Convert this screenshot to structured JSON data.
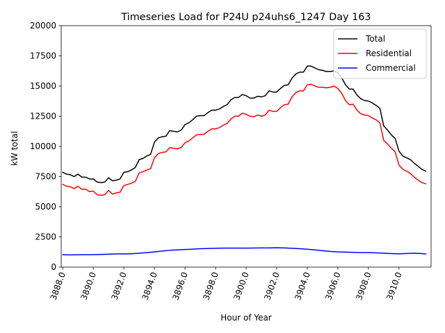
{
  "chart_data": {
    "type": "line",
    "title": "Timeseries Load for P24U p24uhs6_1247  Day 163",
    "xlabel": "Hour of Year",
    "ylabel": "kW total",
    "xlim": [
      3887.9,
      3912.1
    ],
    "ylim": [
      0,
      20000
    ],
    "xticks": [
      3888,
      3890,
      3892,
      3894,
      3896,
      3898,
      3900,
      3902,
      3904,
      3906,
      3908,
      3910
    ],
    "xtick_labels": [
      "3888.0",
      "3890.0",
      "3892.0",
      "3894.0",
      "3896.0",
      "3898.0",
      "3900.0",
      "3902.0",
      "3904.0",
      "3906.0",
      "3908.0",
      "3910.0"
    ],
    "yticks": [
      0,
      2500,
      5000,
      7500,
      10000,
      12500,
      15000,
      17500,
      20000
    ],
    "ytick_labels": [
      "0",
      "2500",
      "5000",
      "7500",
      "10000",
      "12500",
      "15000",
      "17500",
      "20000"
    ],
    "grid": false,
    "legend_position": "top-right",
    "series": [
      {
        "name": "Total",
        "color": "#000000",
        "points": [
          [
            3888.0,
            7850
          ],
          [
            3888.25,
            7700
          ],
          [
            3888.5,
            7650
          ],
          [
            3888.75,
            7500
          ],
          [
            3889.0,
            7700
          ],
          [
            3889.25,
            7450
          ],
          [
            3889.5,
            7450
          ],
          [
            3889.75,
            7300
          ],
          [
            3890.0,
            7300
          ],
          [
            3890.25,
            7050
          ],
          [
            3890.5,
            7000
          ],
          [
            3890.75,
            7050
          ],
          [
            3891.0,
            7400
          ],
          [
            3891.25,
            7150
          ],
          [
            3891.5,
            7200
          ],
          [
            3891.75,
            7300
          ],
          [
            3892.0,
            7850
          ],
          [
            3892.25,
            7900
          ],
          [
            3892.5,
            8050
          ],
          [
            3892.75,
            8250
          ],
          [
            3893.0,
            8900
          ],
          [
            3893.25,
            9000
          ],
          [
            3893.5,
            9200
          ],
          [
            3893.75,
            9350
          ],
          [
            3894.0,
            10350
          ],
          [
            3894.25,
            10700
          ],
          [
            3894.5,
            10800
          ],
          [
            3894.75,
            10850
          ],
          [
            3895.0,
            11300
          ],
          [
            3895.25,
            11250
          ],
          [
            3895.5,
            11200
          ],
          [
            3895.75,
            11350
          ],
          [
            3896.0,
            11800
          ],
          [
            3896.25,
            11950
          ],
          [
            3896.5,
            12200
          ],
          [
            3896.75,
            12500
          ],
          [
            3897.0,
            12550
          ],
          [
            3897.25,
            12550
          ],
          [
            3897.5,
            12800
          ],
          [
            3897.75,
            13000
          ],
          [
            3898.0,
            13000
          ],
          [
            3898.25,
            13100
          ],
          [
            3898.5,
            13300
          ],
          [
            3898.75,
            13450
          ],
          [
            3899.0,
            13850
          ],
          [
            3899.25,
            14050
          ],
          [
            3899.5,
            14050
          ],
          [
            3899.75,
            14300
          ],
          [
            3900.0,
            14200
          ],
          [
            3900.25,
            14000
          ],
          [
            3900.5,
            14000
          ],
          [
            3900.75,
            14150
          ],
          [
            3901.0,
            14100
          ],
          [
            3901.25,
            14200
          ],
          [
            3901.5,
            14600
          ],
          [
            3901.75,
            14500
          ],
          [
            3902.0,
            14500
          ],
          [
            3902.25,
            14800
          ],
          [
            3902.5,
            15050
          ],
          [
            3902.75,
            15100
          ],
          [
            3903.0,
            15650
          ],
          [
            3903.25,
            16000
          ],
          [
            3903.5,
            16150
          ],
          [
            3903.75,
            16150
          ],
          [
            3904.0,
            16650
          ],
          [
            3904.25,
            16650
          ],
          [
            3904.5,
            16500
          ],
          [
            3904.75,
            16350
          ],
          [
            3905.0,
            16300
          ],
          [
            3905.25,
            16200
          ],
          [
            3905.5,
            16200
          ],
          [
            3905.75,
            16250
          ],
          [
            3906.0,
            16100
          ],
          [
            3906.25,
            15700
          ],
          [
            3906.5,
            15100
          ],
          [
            3906.75,
            14750
          ],
          [
            3907.0,
            14750
          ],
          [
            3907.25,
            14250
          ],
          [
            3907.5,
            13950
          ],
          [
            3907.75,
            13800
          ],
          [
            3908.0,
            13750
          ],
          [
            3908.25,
            13600
          ],
          [
            3908.5,
            13400
          ],
          [
            3908.75,
            13150
          ],
          [
            3909.0,
            11700
          ],
          [
            3909.25,
            11350
          ],
          [
            3909.5,
            10950
          ],
          [
            3909.75,
            10650
          ],
          [
            3910.0,
            9600
          ],
          [
            3910.25,
            9200
          ],
          [
            3910.5,
            9050
          ],
          [
            3910.75,
            8900
          ],
          [
            3911.0,
            8600
          ],
          [
            3911.25,
            8350
          ],
          [
            3911.5,
            8100
          ],
          [
            3911.75,
            7950
          ]
        ]
      },
      {
        "name": "Residential",
        "color": "#ff0000",
        "points": [
          [
            3888.0,
            6850
          ],
          [
            3888.25,
            6700
          ],
          [
            3888.5,
            6650
          ],
          [
            3888.75,
            6500
          ],
          [
            3889.0,
            6700
          ],
          [
            3889.25,
            6450
          ],
          [
            3889.5,
            6450
          ],
          [
            3889.75,
            6250
          ],
          [
            3890.0,
            6300
          ],
          [
            3890.25,
            6000
          ],
          [
            3890.5,
            5950
          ],
          [
            3890.75,
            6000
          ],
          [
            3891.0,
            6350
          ],
          [
            3891.25,
            6050
          ],
          [
            3891.5,
            6150
          ],
          [
            3891.75,
            6200
          ],
          [
            3892.0,
            6750
          ],
          [
            3892.25,
            6850
          ],
          [
            3892.5,
            6950
          ],
          [
            3892.75,
            7100
          ],
          [
            3893.0,
            7800
          ],
          [
            3893.25,
            7900
          ],
          [
            3893.5,
            8050
          ],
          [
            3893.75,
            8150
          ],
          [
            3894.0,
            9050
          ],
          [
            3894.25,
            9400
          ],
          [
            3894.5,
            9500
          ],
          [
            3894.75,
            9550
          ],
          [
            3895.0,
            9900
          ],
          [
            3895.25,
            9850
          ],
          [
            3895.5,
            9800
          ],
          [
            3895.75,
            9900
          ],
          [
            3896.0,
            10300
          ],
          [
            3896.25,
            10450
          ],
          [
            3896.5,
            10700
          ],
          [
            3896.75,
            10950
          ],
          [
            3897.0,
            11000
          ],
          [
            3897.25,
            11000
          ],
          [
            3897.5,
            11250
          ],
          [
            3897.75,
            11450
          ],
          [
            3898.0,
            11450
          ],
          [
            3898.25,
            11550
          ],
          [
            3898.5,
            11750
          ],
          [
            3898.75,
            11900
          ],
          [
            3899.0,
            12250
          ],
          [
            3899.25,
            12500
          ],
          [
            3899.5,
            12500
          ],
          [
            3899.75,
            12750
          ],
          [
            3900.0,
            12650
          ],
          [
            3900.25,
            12500
          ],
          [
            3900.5,
            12450
          ],
          [
            3900.75,
            12600
          ],
          [
            3901.0,
            12500
          ],
          [
            3901.25,
            12600
          ],
          [
            3901.5,
            13000
          ],
          [
            3901.75,
            12900
          ],
          [
            3902.0,
            12900
          ],
          [
            3902.25,
            13200
          ],
          [
            3902.5,
            13450
          ],
          [
            3902.75,
            13500
          ],
          [
            3903.0,
            14100
          ],
          [
            3903.25,
            14450
          ],
          [
            3903.5,
            14600
          ],
          [
            3903.75,
            14600
          ],
          [
            3904.0,
            15100
          ],
          [
            3904.25,
            15150
          ],
          [
            3904.5,
            15000
          ],
          [
            3904.75,
            14900
          ],
          [
            3905.0,
            14900
          ],
          [
            3905.25,
            14850
          ],
          [
            3905.5,
            14900
          ],
          [
            3905.75,
            15000
          ],
          [
            3906.0,
            14800
          ],
          [
            3906.25,
            14400
          ],
          [
            3906.5,
            13800
          ],
          [
            3906.75,
            13450
          ],
          [
            3907.0,
            13500
          ],
          [
            3907.25,
            13000
          ],
          [
            3907.5,
            12700
          ],
          [
            3907.75,
            12600
          ],
          [
            3908.0,
            12550
          ],
          [
            3908.25,
            12350
          ],
          [
            3908.5,
            12200
          ],
          [
            3908.75,
            11950
          ],
          [
            3909.0,
            10500
          ],
          [
            3909.25,
            10200
          ],
          [
            3909.5,
            9850
          ],
          [
            3909.75,
            9550
          ],
          [
            3910.0,
            8450
          ],
          [
            3910.25,
            8100
          ],
          [
            3910.5,
            7950
          ],
          [
            3910.75,
            7750
          ],
          [
            3911.0,
            7450
          ],
          [
            3911.25,
            7200
          ],
          [
            3911.5,
            7000
          ],
          [
            3911.75,
            6900
          ]
        ]
      },
      {
        "name": "Commercial",
        "color": "#0000ff",
        "points": [
          [
            3888.0,
            1020
          ],
          [
            3888.5,
            1010
          ],
          [
            3889.0,
            1020
          ],
          [
            3889.5,
            1030
          ],
          [
            3890.0,
            1030
          ],
          [
            3890.5,
            1050
          ],
          [
            3891.0,
            1070
          ],
          [
            3891.5,
            1090
          ],
          [
            3892.0,
            1090
          ],
          [
            3892.5,
            1110
          ],
          [
            3893.0,
            1150
          ],
          [
            3893.5,
            1200
          ],
          [
            3894.0,
            1260
          ],
          [
            3894.5,
            1330
          ],
          [
            3895.0,
            1390
          ],
          [
            3895.5,
            1430
          ],
          [
            3896.0,
            1460
          ],
          [
            3896.5,
            1490
          ],
          [
            3897.0,
            1520
          ],
          [
            3897.5,
            1540
          ],
          [
            3898.0,
            1560
          ],
          [
            3898.5,
            1570
          ],
          [
            3899.0,
            1570
          ],
          [
            3899.5,
            1570
          ],
          [
            3900.0,
            1570
          ],
          [
            3900.5,
            1580
          ],
          [
            3901.0,
            1590
          ],
          [
            3901.5,
            1590
          ],
          [
            3902.0,
            1600
          ],
          [
            3902.5,
            1590
          ],
          [
            3903.0,
            1560
          ],
          [
            3903.5,
            1520
          ],
          [
            3904.0,
            1480
          ],
          [
            3904.5,
            1420
          ],
          [
            3905.0,
            1360
          ],
          [
            3905.5,
            1300
          ],
          [
            3906.0,
            1260
          ],
          [
            3906.5,
            1240
          ],
          [
            3907.0,
            1220
          ],
          [
            3907.5,
            1200
          ],
          [
            3908.0,
            1200
          ],
          [
            3908.5,
            1180
          ],
          [
            3909.0,
            1150
          ],
          [
            3909.5,
            1120
          ],
          [
            3910.0,
            1100
          ],
          [
            3910.5,
            1130
          ],
          [
            3911.0,
            1150
          ],
          [
            3911.5,
            1120
          ],
          [
            3911.75,
            1080
          ]
        ]
      }
    ]
  }
}
